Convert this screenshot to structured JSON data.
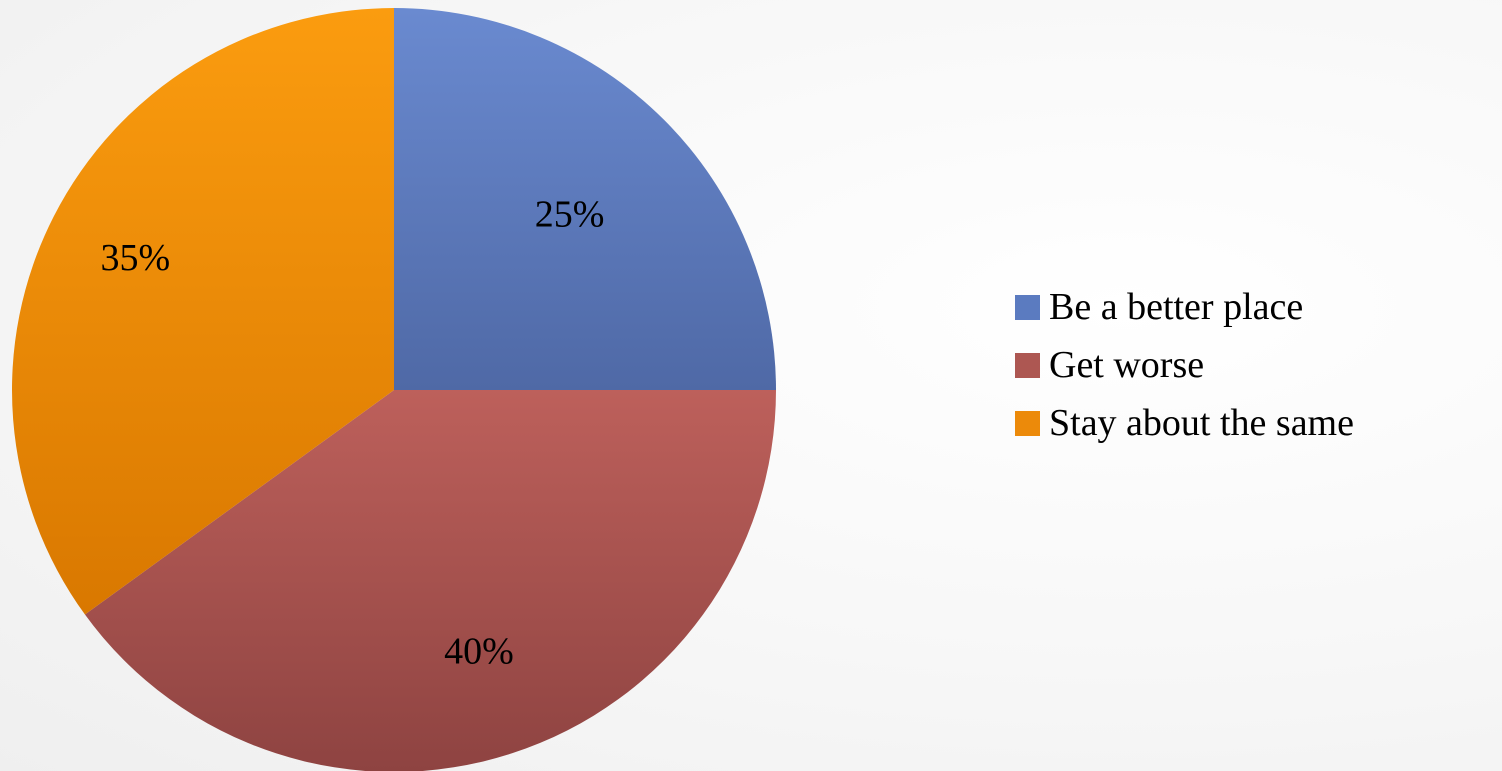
{
  "chart_data": {
    "type": "pie",
    "categories": [
      "Be a better place",
      "Get worse",
      "Stay about the same"
    ],
    "values": [
      25,
      40,
      35
    ],
    "data_labels": [
      "25%",
      "40%",
      "35%"
    ],
    "colors": [
      "#5b7bc0",
      "#ad5752",
      "#ec8a0a"
    ],
    "legend_position": "right",
    "title": ""
  }
}
